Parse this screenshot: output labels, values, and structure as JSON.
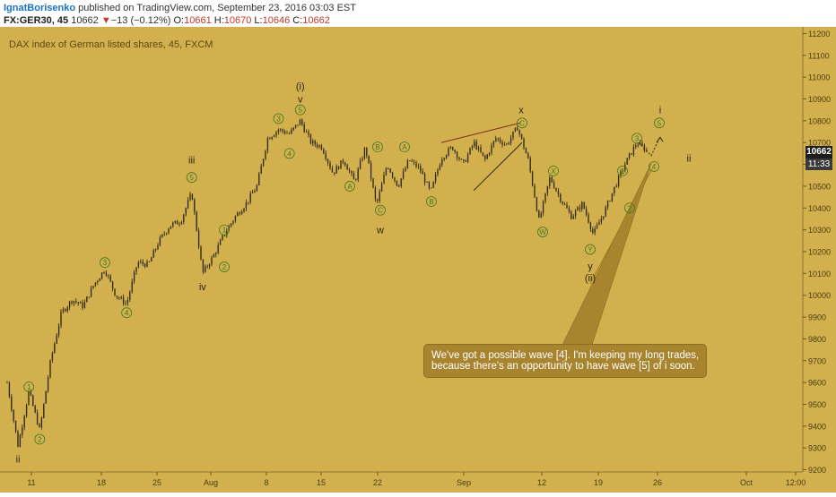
{
  "header": {
    "author": "IgnatBorisenko",
    "published": "published on TradingView.com, September 23, 2016 03:03 EST",
    "symbol": "FX:GER30, 45",
    "last": "10662",
    "change_arrow": "▼",
    "change": "−13 (−0.12%)",
    "o_label": "O:",
    "o": "10661",
    "h_label": "H:",
    "h": "10670",
    "l_label": "L:",
    "l": "10646",
    "c_label": "C:",
    "c": "10662"
  },
  "chart": {
    "title": "DAX index of German listed shares, 45, FXCM",
    "price_badge": "10662",
    "time_badge": "11:33",
    "annotation_line1": "We've got a possible wave [4]. I'm keeping my long trades,",
    "annotation_line2": "because there's an opportunity to have wave [5] of i soon.",
    "background": "#d2b04d",
    "candle_color": "#2b2410"
  },
  "chart_data": {
    "type": "candlestick",
    "title": "DAX index of German listed shares, 45, FXCM",
    "y_ticks": [
      9200,
      9300,
      9400,
      9500,
      9600,
      9700,
      9800,
      9900,
      10000,
      10100,
      10200,
      10300,
      10400,
      10500,
      10600,
      10700,
      10800,
      10900,
      11000,
      11100,
      11200
    ],
    "ylim": [
      9190,
      11210
    ],
    "x_ticks": [
      "11",
      "18",
      "25",
      "Aug",
      "8",
      "15",
      "22",
      "Sep",
      "12",
      "19",
      "26",
      "Oct",
      "12:00"
    ],
    "path": [
      [
        "t0",
        9600
      ],
      [
        "t1",
        9310
      ],
      [
        "t2",
        9560
      ],
      [
        "t3",
        9380
      ],
      [
        "t4",
        9700
      ],
      [
        "t5",
        9920
      ],
      [
        "t6",
        9980
      ],
      [
        "t7",
        9950
      ],
      [
        "t8",
        10050
      ],
      [
        "t9",
        10120
      ],
      [
        "t10",
        10000
      ],
      [
        "t11",
        9960
      ],
      [
        "t12",
        10150
      ],
      [
        "t13",
        10140
      ],
      [
        "t14",
        10250
      ],
      [
        "t15",
        10320
      ],
      [
        "t16",
        10340
      ],
      [
        "t17",
        10470
      ],
      [
        "t18",
        10100
      ],
      [
        "t19",
        10180
      ],
      [
        "t20",
        10280
      ],
      [
        "t21",
        10360
      ],
      [
        "t22",
        10420
      ],
      [
        "t23",
        10500
      ],
      [
        "t24",
        10720
      ],
      [
        "t25",
        10760
      ],
      [
        "t26",
        10740
      ],
      [
        "t27",
        10800
      ],
      [
        "t28",
        10700
      ],
      [
        "t29",
        10680
      ],
      [
        "t30",
        10560
      ],
      [
        "t31",
        10620
      ],
      [
        "t32",
        10520
      ],
      [
        "t33",
        10680
      ],
      [
        "t34",
        10410
      ],
      [
        "t35",
        10600
      ],
      [
        "t36",
        10500
      ],
      [
        "t37",
        10620
      ],
      [
        "t38",
        10580
      ],
      [
        "t39",
        10470
      ],
      [
        "t40",
        10630
      ],
      [
        "t41",
        10680
      ],
      [
        "t42",
        10600
      ],
      [
        "t43",
        10700
      ],
      [
        "t44",
        10620
      ],
      [
        "t45",
        10720
      ],
      [
        "t46",
        10690
      ],
      [
        "t47",
        10770
      ],
      [
        "t48",
        10620
      ],
      [
        "t49",
        10340
      ],
      [
        "t50",
        10540
      ],
      [
        "t51",
        10440
      ],
      [
        "t52",
        10360
      ],
      [
        "t53",
        10420
      ],
      [
        "t54",
        10280
      ],
      [
        "t55",
        10380
      ],
      [
        "t56",
        10500
      ],
      [
        "t57",
        10610
      ],
      [
        "t58",
        10700
      ],
      [
        "t59",
        10660
      ]
    ],
    "wave_labels": [
      {
        "text": "ii",
        "x_day": "t1",
        "price": 9250,
        "style": "roman"
      },
      {
        "text": "1",
        "x_day": "t2",
        "price": 9580,
        "style": "circle"
      },
      {
        "text": "2",
        "x_day": "t3",
        "price": 9340,
        "style": "circle"
      },
      {
        "text": "3",
        "x_day": "t9",
        "price": 10150,
        "style": "circle"
      },
      {
        "text": "4",
        "x_day": "t11",
        "price": 9920,
        "style": "circle"
      },
      {
        "text": "iii",
        "x_day": "t17",
        "price": 10620,
        "style": "roman"
      },
      {
        "text": "5",
        "x_day": "t17",
        "price": 10540,
        "style": "circle"
      },
      {
        "text": "1",
        "x_day": "t20",
        "price": 10300,
        "style": "circle"
      },
      {
        "text": "iv",
        "x_day": "t18",
        "price": 10040,
        "style": "roman"
      },
      {
        "text": "2",
        "x_day": "t20",
        "price": 10130,
        "style": "circle"
      },
      {
        "text": "3",
        "x_day": "t25",
        "price": 10810,
        "style": "circle"
      },
      {
        "text": "(i)",
        "x_day": "t27",
        "price": 10960,
        "style": "roman"
      },
      {
        "text": "v",
        "x_day": "t27",
        "price": 10900,
        "style": "roman"
      },
      {
        "text": "5",
        "x_day": "t27",
        "price": 10850,
        "style": "circle"
      },
      {
        "text": "4",
        "x_day": "t26",
        "price": 10650,
        "style": "circle"
      }
    ]
  }
}
